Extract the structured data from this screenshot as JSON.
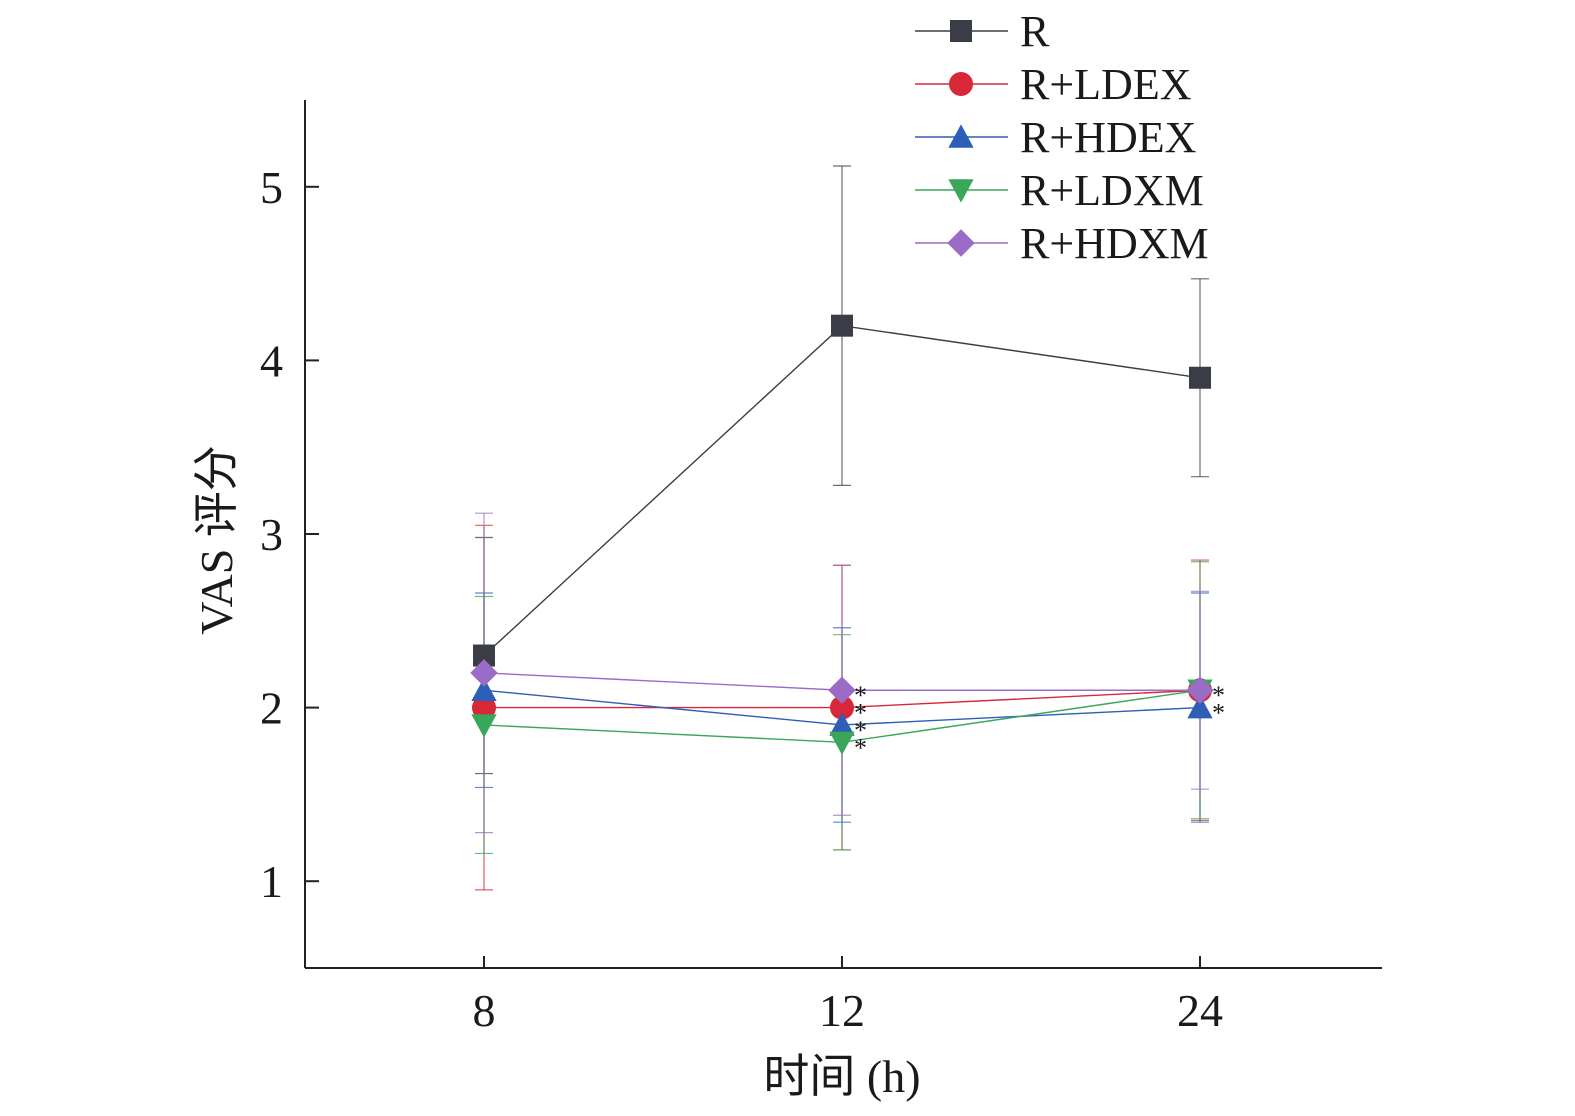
{
  "chart_data": {
    "type": "line",
    "title": "",
    "xlabel": "时间 (h)",
    "ylabel": "VAS 评分",
    "categories": [
      "8",
      "12",
      "24"
    ],
    "yticks": [
      "1",
      "2",
      "3",
      "4",
      "5"
    ],
    "ylim": [
      0.5,
      5.5
    ],
    "grid": false,
    "legend_position": "top-right",
    "series": [
      {
        "name": "R",
        "marker": "square",
        "color": "#3a3d45",
        "values": [
          2.3,
          4.2,
          3.9
        ],
        "errors": [
          0.68,
          0.92,
          0.57
        ],
        "sig": [
          "",
          "",
          ""
        ]
      },
      {
        "name": "R+LDEX",
        "marker": "circle",
        "color": "#d9273a",
        "values": [
          2.0,
          2.0,
          2.1
        ],
        "errors": [
          1.05,
          0.82,
          0.75
        ],
        "sig": [
          "",
          "*",
          ""
        ]
      },
      {
        "name": "R+HDEX",
        "marker": "triangle-up",
        "color": "#2d5fb8",
        "values": [
          2.1,
          1.9,
          2.0
        ],
        "errors": [
          0.56,
          0.56,
          0.66
        ],
        "sig": [
          "",
          "*",
          "*"
        ]
      },
      {
        "name": "R+LDXM",
        "marker": "triangle-down",
        "color": "#3aa65a",
        "values": [
          1.9,
          1.8,
          2.1
        ],
        "errors": [
          0.74,
          0.62,
          0.74
        ],
        "sig": [
          "",
          "*",
          ""
        ]
      },
      {
        "name": "R+HDXM",
        "marker": "diamond",
        "color": "#9a6cc6",
        "values": [
          2.2,
          2.1,
          2.1
        ],
        "errors": [
          0.92,
          0.72,
          0.57
        ],
        "sig": [
          "",
          "*",
          "*"
        ]
      }
    ]
  }
}
